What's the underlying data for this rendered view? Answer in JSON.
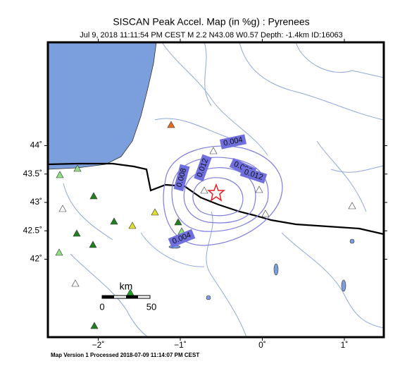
{
  "map": {
    "title": "SISCAN Peak Accel. Map (in %g) : Pyrenees",
    "subtitle": "Jul  9, 2018 11:11:54 PM CEST   M 2.2   N43.08 W0.57   Depth: -1.4km   ID:16063",
    "lat_ticks": [
      {
        "value": 44,
        "label": "44˚"
      },
      {
        "value": 43.5,
        "label": "43.5˚"
      },
      {
        "value": 43,
        "label": "43˚"
      },
      {
        "value": 42.5,
        "label": "42.5˚"
      },
      {
        "value": 42,
        "label": "42˚"
      }
    ],
    "lon_ticks": [
      {
        "value": -2,
        "label": "−2˚"
      },
      {
        "value": -1,
        "label": "−1˚"
      },
      {
        "value": 0,
        "label": "0˚"
      },
      {
        "value": 1,
        "label": "1˚"
      }
    ],
    "contour_labels": [
      "0.004",
      "0.012",
      "0.008",
      "0.008",
      "0.012",
      "0.004"
    ],
    "scale_bar": {
      "unit": "km",
      "labels": [
        "0",
        "50"
      ]
    },
    "footer": "Map Version 1 Processed 2018-07-09 11:14:07 PM CEST"
  }
}
